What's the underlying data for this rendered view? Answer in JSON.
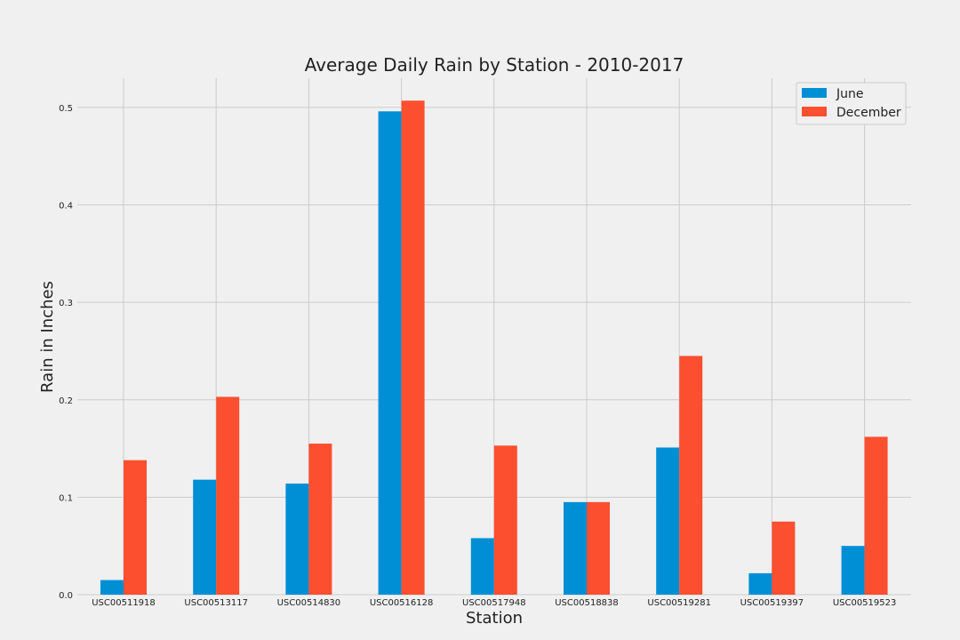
{
  "chart_data": {
    "type": "bar",
    "title": "Average Daily Rain by Station - 2010-2017",
    "xlabel": "Station",
    "ylabel": "Rain in Inches",
    "categories": [
      "USC00511918",
      "USC00513117",
      "USC00514830",
      "USC00516128",
      "USC00517948",
      "USC00518838",
      "USC00519281",
      "USC00519397",
      "USC00519523"
    ],
    "series": [
      {
        "name": "June",
        "color": "#008fd5",
        "values": [
          0.015,
          0.118,
          0.114,
          0.496,
          0.058,
          0.095,
          0.151,
          0.022,
          0.05
        ]
      },
      {
        "name": "December",
        "color": "#fc4f30",
        "values": [
          0.138,
          0.203,
          0.155,
          0.507,
          0.153,
          0.095,
          0.245,
          0.075,
          0.162
        ]
      }
    ],
    "ylim": [
      0,
      0.53
    ],
    "yticks": [
      "0.0",
      "0.1",
      "0.2",
      "0.3",
      "0.4",
      "0.5"
    ],
    "grid": true,
    "legend_position": "top-right"
  }
}
